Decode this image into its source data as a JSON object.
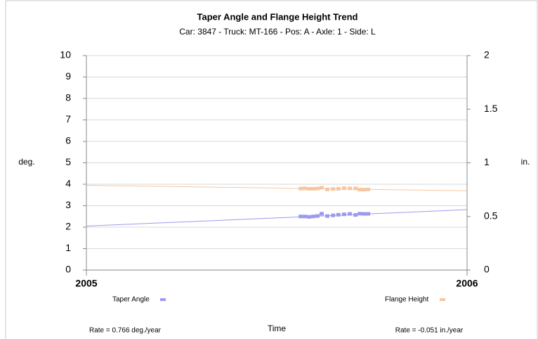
{
  "chart_data": {
    "type": "scatter",
    "title": "Taper Angle and Flange Height Trend",
    "subtitle": "Car: 3847 - Truck: MT-166 - Pos: A - Axle: 1 - Side: L",
    "x_label": "Time",
    "y_label": "deg.",
    "y2_label": "in.",
    "xlim": [
      2005,
      2006
    ],
    "xticks": [
      2005,
      2006
    ],
    "ylim": [
      0,
      10
    ],
    "yticks": [
      0,
      1,
      2,
      3,
      4,
      5,
      6,
      7,
      8,
      9,
      10
    ],
    "y2lim": [
      0,
      2
    ],
    "y2ticks": [
      0,
      0.5,
      1,
      1.5,
      2
    ],
    "grid": true,
    "series": [
      {
        "name": "Taper Angle",
        "color": "#9a9af0",
        "axis": "y",
        "x": [
          2005.563,
          2005.574,
          2005.585,
          2005.596,
          2005.607,
          2005.618,
          2005.633,
          2005.648,
          2005.662,
          2005.677,
          2005.692,
          2005.707,
          2005.718,
          2005.729,
          2005.74
        ],
        "values": [
          2.5,
          2.5,
          2.48,
          2.5,
          2.52,
          2.63,
          2.52,
          2.55,
          2.58,
          2.6,
          2.62,
          2.57,
          2.63,
          2.62,
          2.62
        ],
        "trend_values": [
          2.05,
          2.816
        ],
        "rate_label": "Rate = 0.766 deg./year"
      },
      {
        "name": "Flange Height",
        "color": "#f7c6a0",
        "axis": "y2",
        "x": [
          2005.563,
          2005.574,
          2005.585,
          2005.596,
          2005.607,
          2005.618,
          2005.633,
          2005.648,
          2005.662,
          2005.677,
          2005.692,
          2005.707,
          2005.718,
          2005.729,
          2005.74
        ],
        "values": [
          0.76,
          0.762,
          0.758,
          0.758,
          0.76,
          0.768,
          0.752,
          0.756,
          0.758,
          0.764,
          0.762,
          0.762,
          0.75,
          0.75,
          0.752
        ],
        "trend_values": [
          0.79,
          0.739
        ],
        "rate_label": "Rate = -0.051 in./year"
      }
    ]
  }
}
